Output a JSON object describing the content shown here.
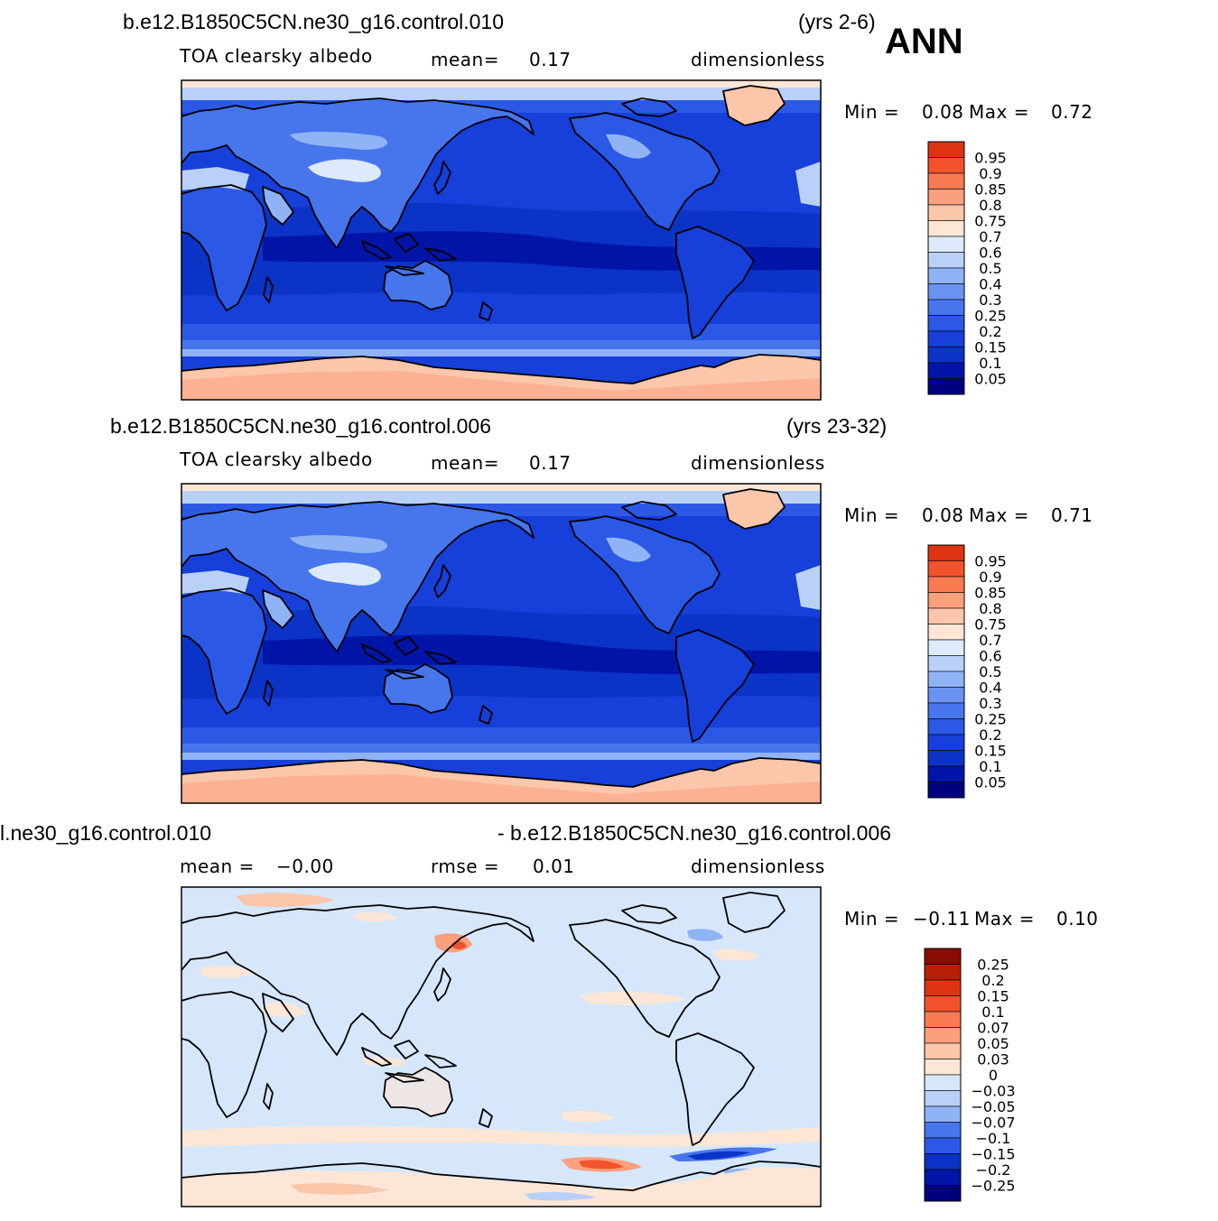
{
  "season": "ANN",
  "colors": {
    "sequential": [
      "#00007f",
      "#0015a8",
      "#0b33c6",
      "#173fd9",
      "#2b59e5",
      "#4775ec",
      "#6a93f1",
      "#90b3f6",
      "#b9d1f9",
      "#dceafb",
      "#fde6d6",
      "#fcc6aa",
      "#fba07d",
      "#fa7a52",
      "#f3532c",
      "#de3412",
      "#b91f08",
      "#8a0c03"
    ],
    "diff": [
      "#00007f",
      "#0015a8",
      "#0b33c6",
      "#2b59e5",
      "#4775ec",
      "#90b3f6",
      "#b9d1f9",
      "#d6e7fb",
      "#fde6d6",
      "#fcc6aa",
      "#fba07d",
      "#fa7a52",
      "#f3532c",
      "#de3412",
      "#b91f08",
      "#8a0c03"
    ]
  },
  "panels": [
    {
      "case_left": "b.e12.B1850C5CN.ne30_g16.control.010",
      "case_right": "(yrs 2-6)",
      "variable": "TOA clearsky albedo",
      "stat1": "mean=",
      "stat1_value": "0.17",
      "units": "dimensionless",
      "min_label": "Min =",
      "min_value": "0.08",
      "max_label": "Max =",
      "max_value": "0.72",
      "colorbar_labels": [
        "0.95",
        "0.9",
        "0.85",
        "0.8",
        "0.75",
        "0.7",
        "0.6",
        "0.5",
        "0.4",
        "0.3",
        "0.25",
        "0.2",
        "0.15",
        "0.1",
        "0.05"
      ]
    },
    {
      "case_left": "b.e12.B1850C5CN.ne30_g16.control.006",
      "case_right": "(yrs 23-32)",
      "variable": "TOA clearsky albedo",
      "stat1": "mean=",
      "stat1_value": "0.17",
      "units": "dimensionless",
      "min_label": "Min =",
      "min_value": "0.08",
      "max_label": "Max =",
      "max_value": "0.71",
      "colorbar_labels": [
        "0.95",
        "0.9",
        "0.85",
        "0.8",
        "0.75",
        "0.7",
        "0.6",
        "0.5",
        "0.4",
        "0.3",
        "0.25",
        "0.2",
        "0.15",
        "0.1",
        "0.05"
      ]
    },
    {
      "case_left": "l.ne30_g16.control.010",
      "case_right": "- b.e12.B1850C5CN.ne30_g16.control.006",
      "stat1": "mean =",
      "stat1_value": "−0.00",
      "stat2": "rmse =",
      "stat2_value": "0.01",
      "units": "dimensionless",
      "min_label": "Min =",
      "min_value": "−0.11",
      "max_label": "Max =",
      "max_value": "0.10",
      "colorbar_labels": [
        "0.25",
        "0.2",
        "0.15",
        "0.1",
        "0.07",
        "0.05",
        "0.03",
        "0",
        "−0.03",
        "−0.05",
        "−0.07",
        "−0.1",
        "−0.15",
        "−0.2",
        "−0.25"
      ]
    }
  ]
}
